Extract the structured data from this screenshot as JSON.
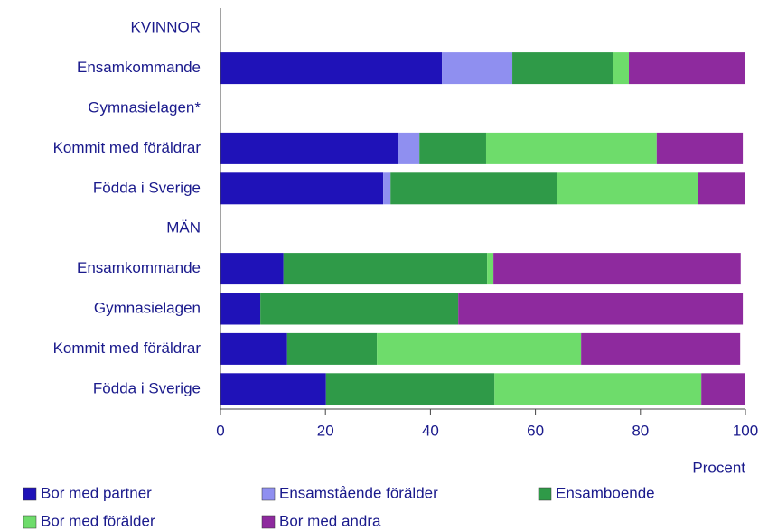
{
  "chart_data": {
    "type": "stacked_bar_horizontal",
    "categories": [
      "KVINNOR",
      "Ensamkommande",
      "Gymnasielagen*",
      "Kommit med föräldrar",
      "Födda i Sverige",
      "MÄN",
      "Ensamkommande",
      "Gymnasielagen",
      "Kommit med föräldrar",
      "Födda i Sverige"
    ],
    "series": [
      {
        "name": "Bor med partner",
        "color": "#1f12b8",
        "values": [
          null,
          42.2,
          null,
          33.9,
          31.0,
          null,
          12.0,
          7.6,
          12.7,
          20.1
        ]
      },
      {
        "name": "Ensamstående förälder",
        "color": "#8f8ff0",
        "values": [
          null,
          13.4,
          null,
          4.0,
          1.4,
          null,
          0,
          0,
          0,
          0
        ]
      },
      {
        "name": "Ensamboende",
        "color": "#2f9a48",
        "values": [
          null,
          19.1,
          null,
          12.7,
          31.8,
          null,
          38.8,
          37.7,
          17.1,
          32.1
        ]
      },
      {
        "name": "Bor med förälder",
        "color": "#6edc6b",
        "values": [
          null,
          3.1,
          null,
          32.5,
          26.8,
          null,
          1.2,
          0,
          38.9,
          39.4
        ]
      },
      {
        "name": "Bor med andra",
        "color": "#8e2a9e",
        "values": [
          null,
          22.2,
          null,
          16.4,
          9.0,
          null,
          47.1,
          54.2,
          30.3,
          8.4
        ]
      }
    ],
    "xlabel": "Procent",
    "xlim": [
      0,
      100
    ],
    "xticks": [
      0,
      20,
      40,
      60,
      80,
      100
    ],
    "legend": "bottom"
  }
}
